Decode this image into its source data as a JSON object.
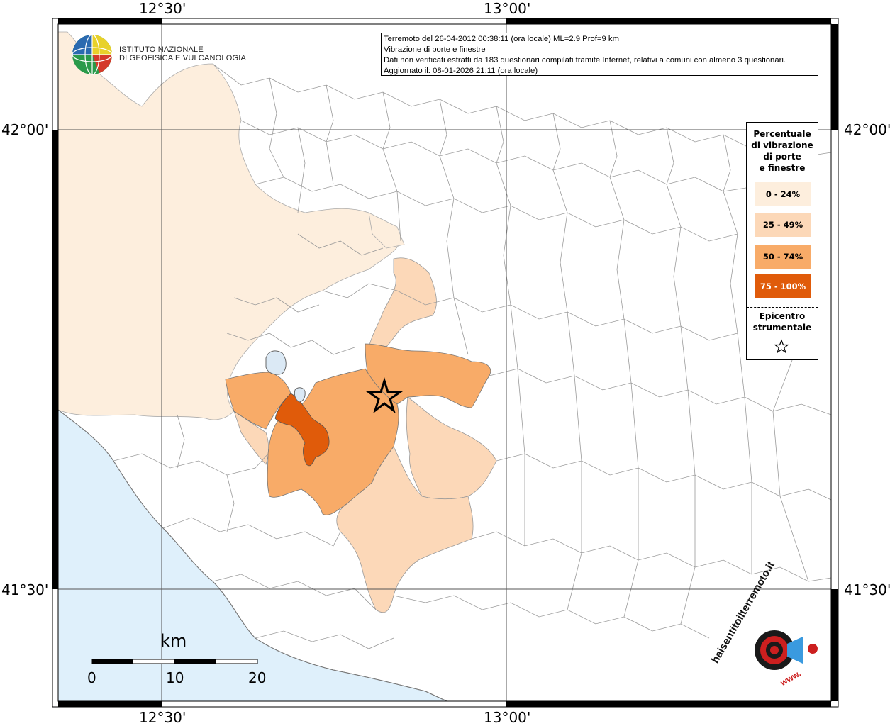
{
  "header": {
    "line1": "Terremoto del 26-04-2012 00:38:11 (ora locale) ML=2.9 Prof=9 km",
    "line2": "Vibrazione di porte e finestre",
    "line3": "Dati non verificati estratti da 183 questionari compilati tramite Internet, relativi a comuni con almeno 3 questionari.",
    "line4": "Aggiornato il: 08-01-2026 21:11 (ora locale)"
  },
  "institute": {
    "name_line1": "ISTITUTO NAZIONALE",
    "name_line2": "DI GEOFISICA E VULCANOLOGIA"
  },
  "axes": {
    "top_left_lon": "12°30'",
    "top_right_lon": "13°00'",
    "bottom_left_lon": "12°30'",
    "bottom_right_lon": "13°00'",
    "lat_upper_left": "42°00'",
    "lat_upper_right": "42°00'",
    "lat_lower_left": "41°30'",
    "lat_lower_right": "41°30'"
  },
  "legend": {
    "title_line1": "Percentuale",
    "title_line2": "di vibrazione",
    "title_line3": "di porte",
    "title_line4": "e finestre",
    "classes": [
      {
        "label": "0 - 24%",
        "color": "#fdeedd"
      },
      {
        "label": "25 - 49%",
        "color": "#fcd8b8"
      },
      {
        "label": "50 - 74%",
        "color": "#f8ab68"
      },
      {
        "label": "75 - 100%",
        "color": "#e05b0a"
      }
    ],
    "epicenter_line1": "Epicentro",
    "epicenter_line2": "strumentale"
  },
  "scale_bar": {
    "unit": "km",
    "ticks": [
      "0",
      "10",
      "20"
    ]
  },
  "branding": {
    "site_text": "haisentitoilterremoto.it",
    "www_text": "www."
  },
  "colors": {
    "sea": "#dff0fb",
    "land": "#ffffff",
    "lake": "#dbe9f5",
    "border": "#9a9a9a"
  }
}
